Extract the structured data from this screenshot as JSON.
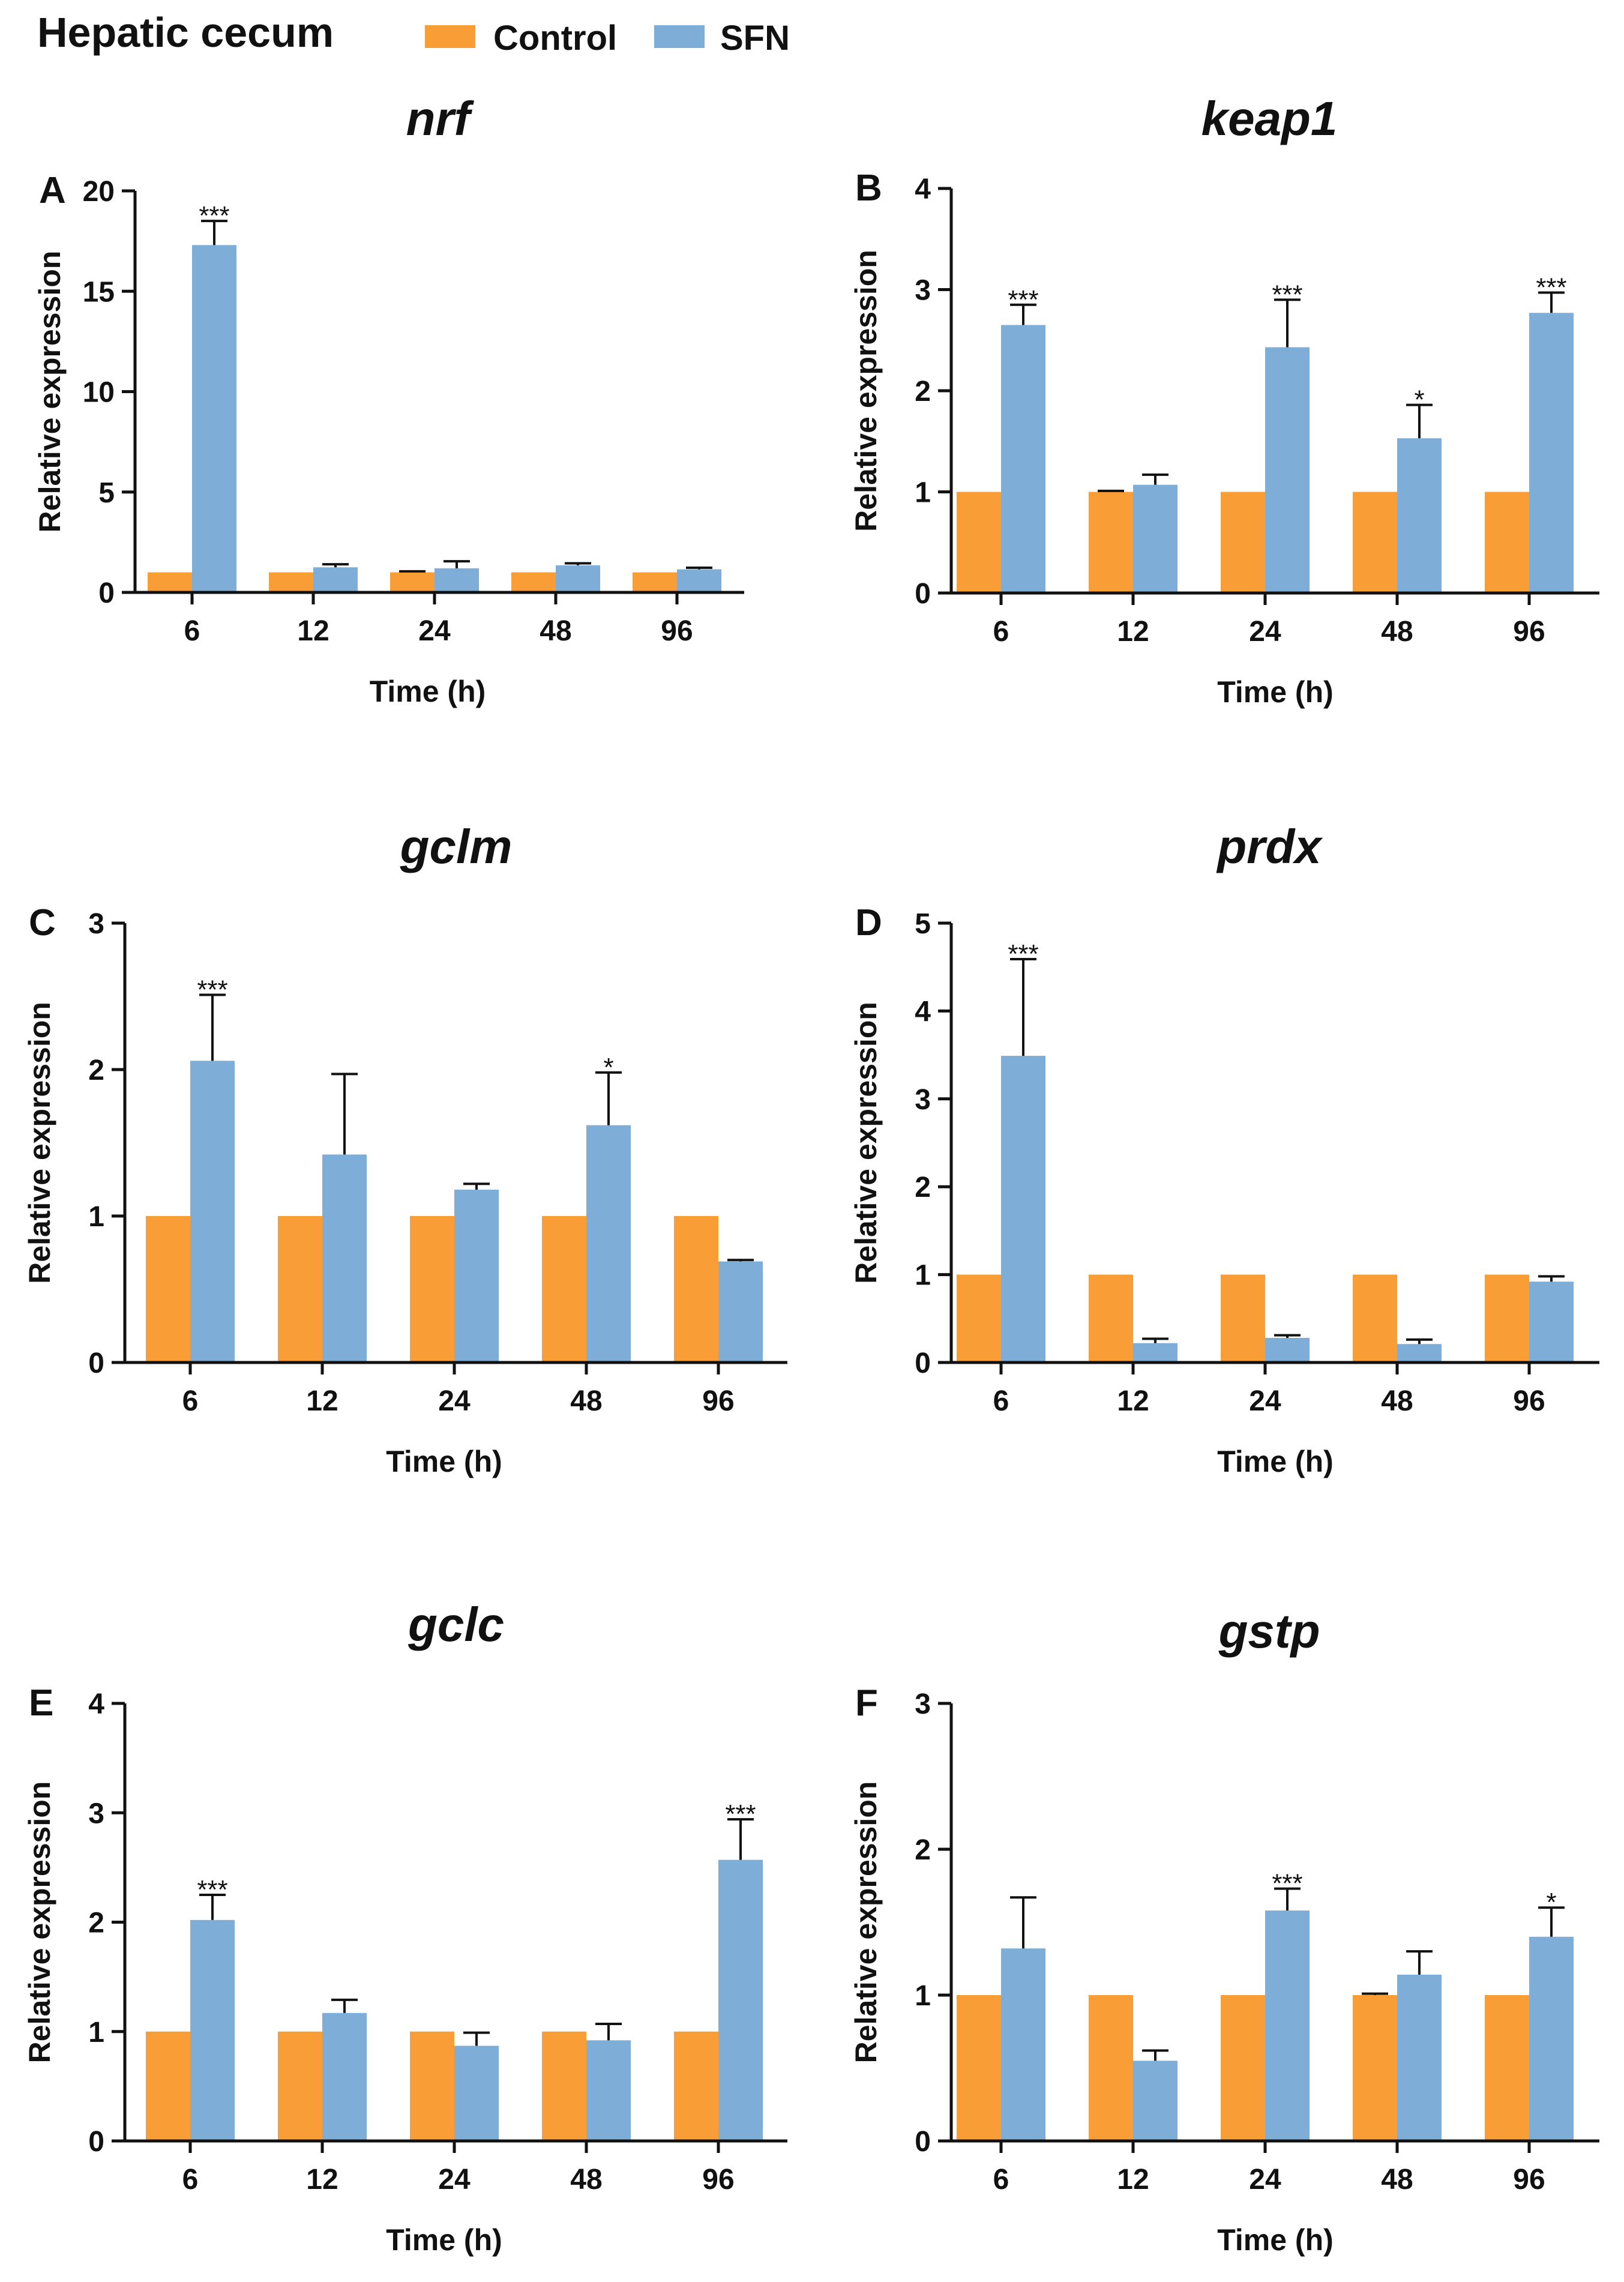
{
  "figure": {
    "title": "Hepatic cecum",
    "legend": [
      {
        "name": "Control",
        "color": "#F99E37"
      },
      {
        "name": "SFN",
        "color": "#7EAED7"
      }
    ]
  },
  "chart_data": [
    {
      "type": "bar",
      "letter": "A",
      "title": "nrf",
      "xlabel": "Time (h)",
      "ylabel": "Relative expression",
      "categories": [
        "6",
        "12",
        "24",
        "48",
        "96"
      ],
      "ylim": [
        0,
        20
      ],
      "yticks": [
        0,
        5,
        10,
        15,
        20
      ],
      "series": [
        {
          "name": "Control",
          "values": [
            1,
            1,
            1,
            1,
            1
          ],
          "errors": [
            0,
            0,
            0.05,
            0,
            0
          ]
        },
        {
          "name": "SFN",
          "values": [
            17.3,
            1.25,
            1.2,
            1.35,
            1.15
          ],
          "errors": [
            1.2,
            0.15,
            0.35,
            0.1,
            0.08
          ]
        }
      ],
      "significance": [
        "***",
        "",
        "",
        "",
        ""
      ]
    },
    {
      "type": "bar",
      "letter": "B",
      "title": "keap1",
      "xlabel": "Time (h)",
      "ylabel": "Relative expression",
      "categories": [
        "6",
        "12",
        "24",
        "48",
        "96"
      ],
      "ylim": [
        0,
        4
      ],
      "yticks": [
        0,
        1,
        2,
        3,
        4
      ],
      "series": [
        {
          "name": "Control",
          "values": [
            1,
            1,
            1,
            1,
            1
          ],
          "errors": [
            0,
            0.01,
            0,
            0,
            0
          ]
        },
        {
          "name": "SFN",
          "values": [
            2.65,
            1.07,
            2.43,
            1.53,
            2.77
          ],
          "errors": [
            0.2,
            0.1,
            0.47,
            0.33,
            0.2
          ]
        }
      ],
      "significance": [
        "***",
        "",
        "***",
        "*",
        "***"
      ]
    },
    {
      "type": "bar",
      "letter": "C",
      "title": "gclm",
      "xlabel": "Time (h)",
      "ylabel": "Relative expression",
      "categories": [
        "6",
        "12",
        "24",
        "48",
        "96"
      ],
      "ylim": [
        0,
        3
      ],
      "yticks": [
        0,
        1,
        2,
        3
      ],
      "series": [
        {
          "name": "Control",
          "values": [
            1,
            1,
            1,
            1,
            1
          ],
          "errors": [
            0,
            0,
            0,
            0,
            0
          ]
        },
        {
          "name": "SFN",
          "values": [
            2.06,
            1.42,
            1.18,
            1.62,
            0.69
          ],
          "errors": [
            0.45,
            0.55,
            0.04,
            0.36,
            0.01
          ]
        }
      ],
      "significance": [
        "***",
        "",
        "",
        "*",
        ""
      ]
    },
    {
      "type": "bar",
      "letter": "D",
      "title": "prdx",
      "xlabel": "Time (h)",
      "ylabel": "Relative expression",
      "categories": [
        "6",
        "12",
        "24",
        "48",
        "96"
      ],
      "ylim": [
        0,
        5
      ],
      "yticks": [
        0,
        1,
        2,
        3,
        4,
        5
      ],
      "series": [
        {
          "name": "Control",
          "values": [
            1,
            1,
            1,
            1,
            1
          ],
          "errors": [
            0,
            0,
            0,
            0,
            0
          ]
        },
        {
          "name": "SFN",
          "values": [
            3.49,
            0.22,
            0.28,
            0.21,
            0.92
          ],
          "errors": [
            1.1,
            0.05,
            0.03,
            0.05,
            0.06
          ]
        }
      ],
      "significance": [
        "***",
        "",
        "",
        "",
        ""
      ]
    },
    {
      "type": "bar",
      "letter": "E",
      "title": "gclc",
      "xlabel": "Time (h)",
      "ylabel": "Relative expression",
      "categories": [
        "6",
        "12",
        "24",
        "48",
        "96"
      ],
      "ylim": [
        0,
        4
      ],
      "yticks": [
        0,
        1,
        2,
        3,
        4
      ],
      "series": [
        {
          "name": "Control",
          "values": [
            1,
            1,
            1,
            1,
            1
          ],
          "errors": [
            0,
            0,
            0,
            0,
            0
          ]
        },
        {
          "name": "SFN",
          "values": [
            2.02,
            1.17,
            0.87,
            0.92,
            2.57
          ],
          "errors": [
            0.23,
            0.12,
            0.12,
            0.15,
            0.37
          ]
        }
      ],
      "significance": [
        "***",
        "",
        "",
        "",
        "***"
      ]
    },
    {
      "type": "bar",
      "letter": "F",
      "title": "gstp",
      "xlabel": "Time (h)",
      "ylabel": "Relative expression",
      "categories": [
        "6",
        "12",
        "24",
        "48",
        "96"
      ],
      "ylim": [
        0,
        3
      ],
      "yticks": [
        0,
        1,
        2,
        3
      ],
      "series": [
        {
          "name": "Control",
          "values": [
            1,
            1,
            1,
            1,
            1
          ],
          "errors": [
            0,
            0,
            0,
            0.01,
            0
          ]
        },
        {
          "name": "SFN",
          "values": [
            1.32,
            0.55,
            1.58,
            1.14,
            1.4
          ],
          "errors": [
            0.35,
            0.07,
            0.15,
            0.16,
            0.2
          ]
        }
      ],
      "significance": [
        "",
        "",
        "***",
        "",
        "*"
      ]
    }
  ]
}
